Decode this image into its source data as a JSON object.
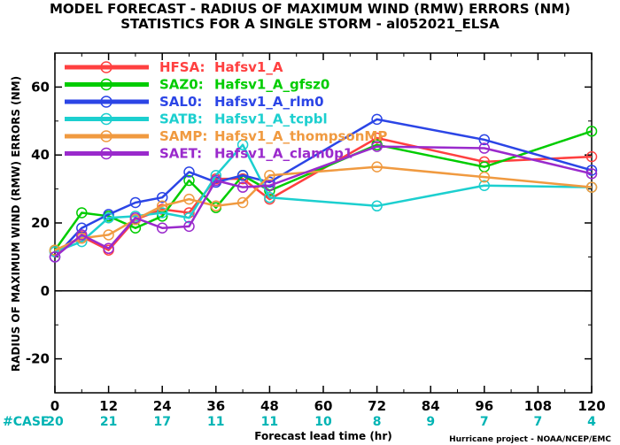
{
  "chart_data": {
    "type": "line",
    "title": "MODEL FORECAST - RADIUS OF MAXIMUM WIND (RMW) ERRORS (NM)",
    "subtitle": "STATISTICS FOR A SINGLE STORM - al052021_ELSA",
    "xlabel": "Forecast lead time (hr)",
    "ylabel": "RADIUS OF MAXIMUM WIND (RMW) ERRORS (NM)",
    "xlim": [
      0,
      120
    ],
    "ylim": [
      -30,
      70
    ],
    "xticks": [
      0,
      12,
      24,
      36,
      48,
      60,
      72,
      84,
      96,
      108,
      120
    ],
    "yticks": [
      -20,
      0,
      20,
      40,
      60
    ],
    "zero_line": true,
    "grid": false,
    "legend_position": "top-left",
    "case_counts": {
      "label": "#CASE",
      "color": "#00b4b4",
      "x": [
        0,
        12,
        24,
        36,
        48,
        60,
        72,
        84,
        96,
        108,
        120
      ],
      "values": [
        "20",
        "21",
        "17",
        "11",
        "11",
        "10",
        "8",
        "9",
        "7",
        "7",
        "4"
      ]
    },
    "series": [
      {
        "code": "HFSA:",
        "name": "Hafsv1_A",
        "color": "#ff4040",
        "x": [
          0,
          6,
          12,
          18,
          24,
          30,
          36,
          42,
          48,
          72,
          96,
          120
        ],
        "values": [
          11.5,
          16,
          12,
          21,
          24,
          23,
          33,
          33,
          27,
          45,
          38,
          39.5
        ]
      },
      {
        "code": "SAZ0:",
        "name": "Hafsv1_A_gfsz0",
        "color": "#00cc00",
        "x": [
          0,
          6,
          12,
          18,
          24,
          30,
          36,
          42,
          48,
          72,
          96,
          120
        ],
        "values": [
          12,
          23,
          22,
          18.5,
          22,
          32.5,
          24.5,
          34,
          29.5,
          43,
          36.5,
          47
        ]
      },
      {
        "code": "SAL0:",
        "name": "Hafsv1_A_rlm0",
        "color": "#2b45e6",
        "x": [
          0,
          6,
          12,
          18,
          24,
          30,
          36,
          42,
          48,
          72,
          96,
          120
        ],
        "values": [
          10,
          18.5,
          22.5,
          26,
          27.5,
          35,
          32,
          34,
          32,
          50.5,
          44.5,
          35.5
        ]
      },
      {
        "code": "SATB:",
        "name": "Hafsv1_A_tcpbl",
        "color": "#1ccfcf",
        "x": [
          0,
          6,
          12,
          18,
          24,
          30,
          36,
          42,
          48,
          72,
          96,
          120
        ],
        "values": [
          11.5,
          14.5,
          21.5,
          22,
          23,
          21.5,
          34,
          43,
          27.5,
          25,
          31,
          30.5
        ]
      },
      {
        "code": "SAMP:",
        "name": "Hafsv1_A_thompsonMP",
        "color": "#f09a40",
        "x": [
          0,
          6,
          12,
          18,
          24,
          30,
          36,
          42,
          48,
          72,
          96,
          120
        ],
        "values": [
          12,
          15.5,
          16.5,
          21,
          25,
          27,
          25,
          26,
          34,
          36.5,
          33.5,
          30.5
        ]
      },
      {
        "code": "SAET:",
        "name": "Hafsv1_A_clam0p1",
        "color": "#9a2acc",
        "x": [
          0,
          6,
          12,
          18,
          24,
          30,
          36,
          42,
          48,
          72,
          96,
          120
        ],
        "values": [
          10,
          16.5,
          12.5,
          21.5,
          18.5,
          19,
          32.5,
          30.5,
          31,
          42.5,
          42,
          34.5
        ]
      }
    ]
  },
  "credit": "Hurricane project - NOAA/NCEP/EMC"
}
